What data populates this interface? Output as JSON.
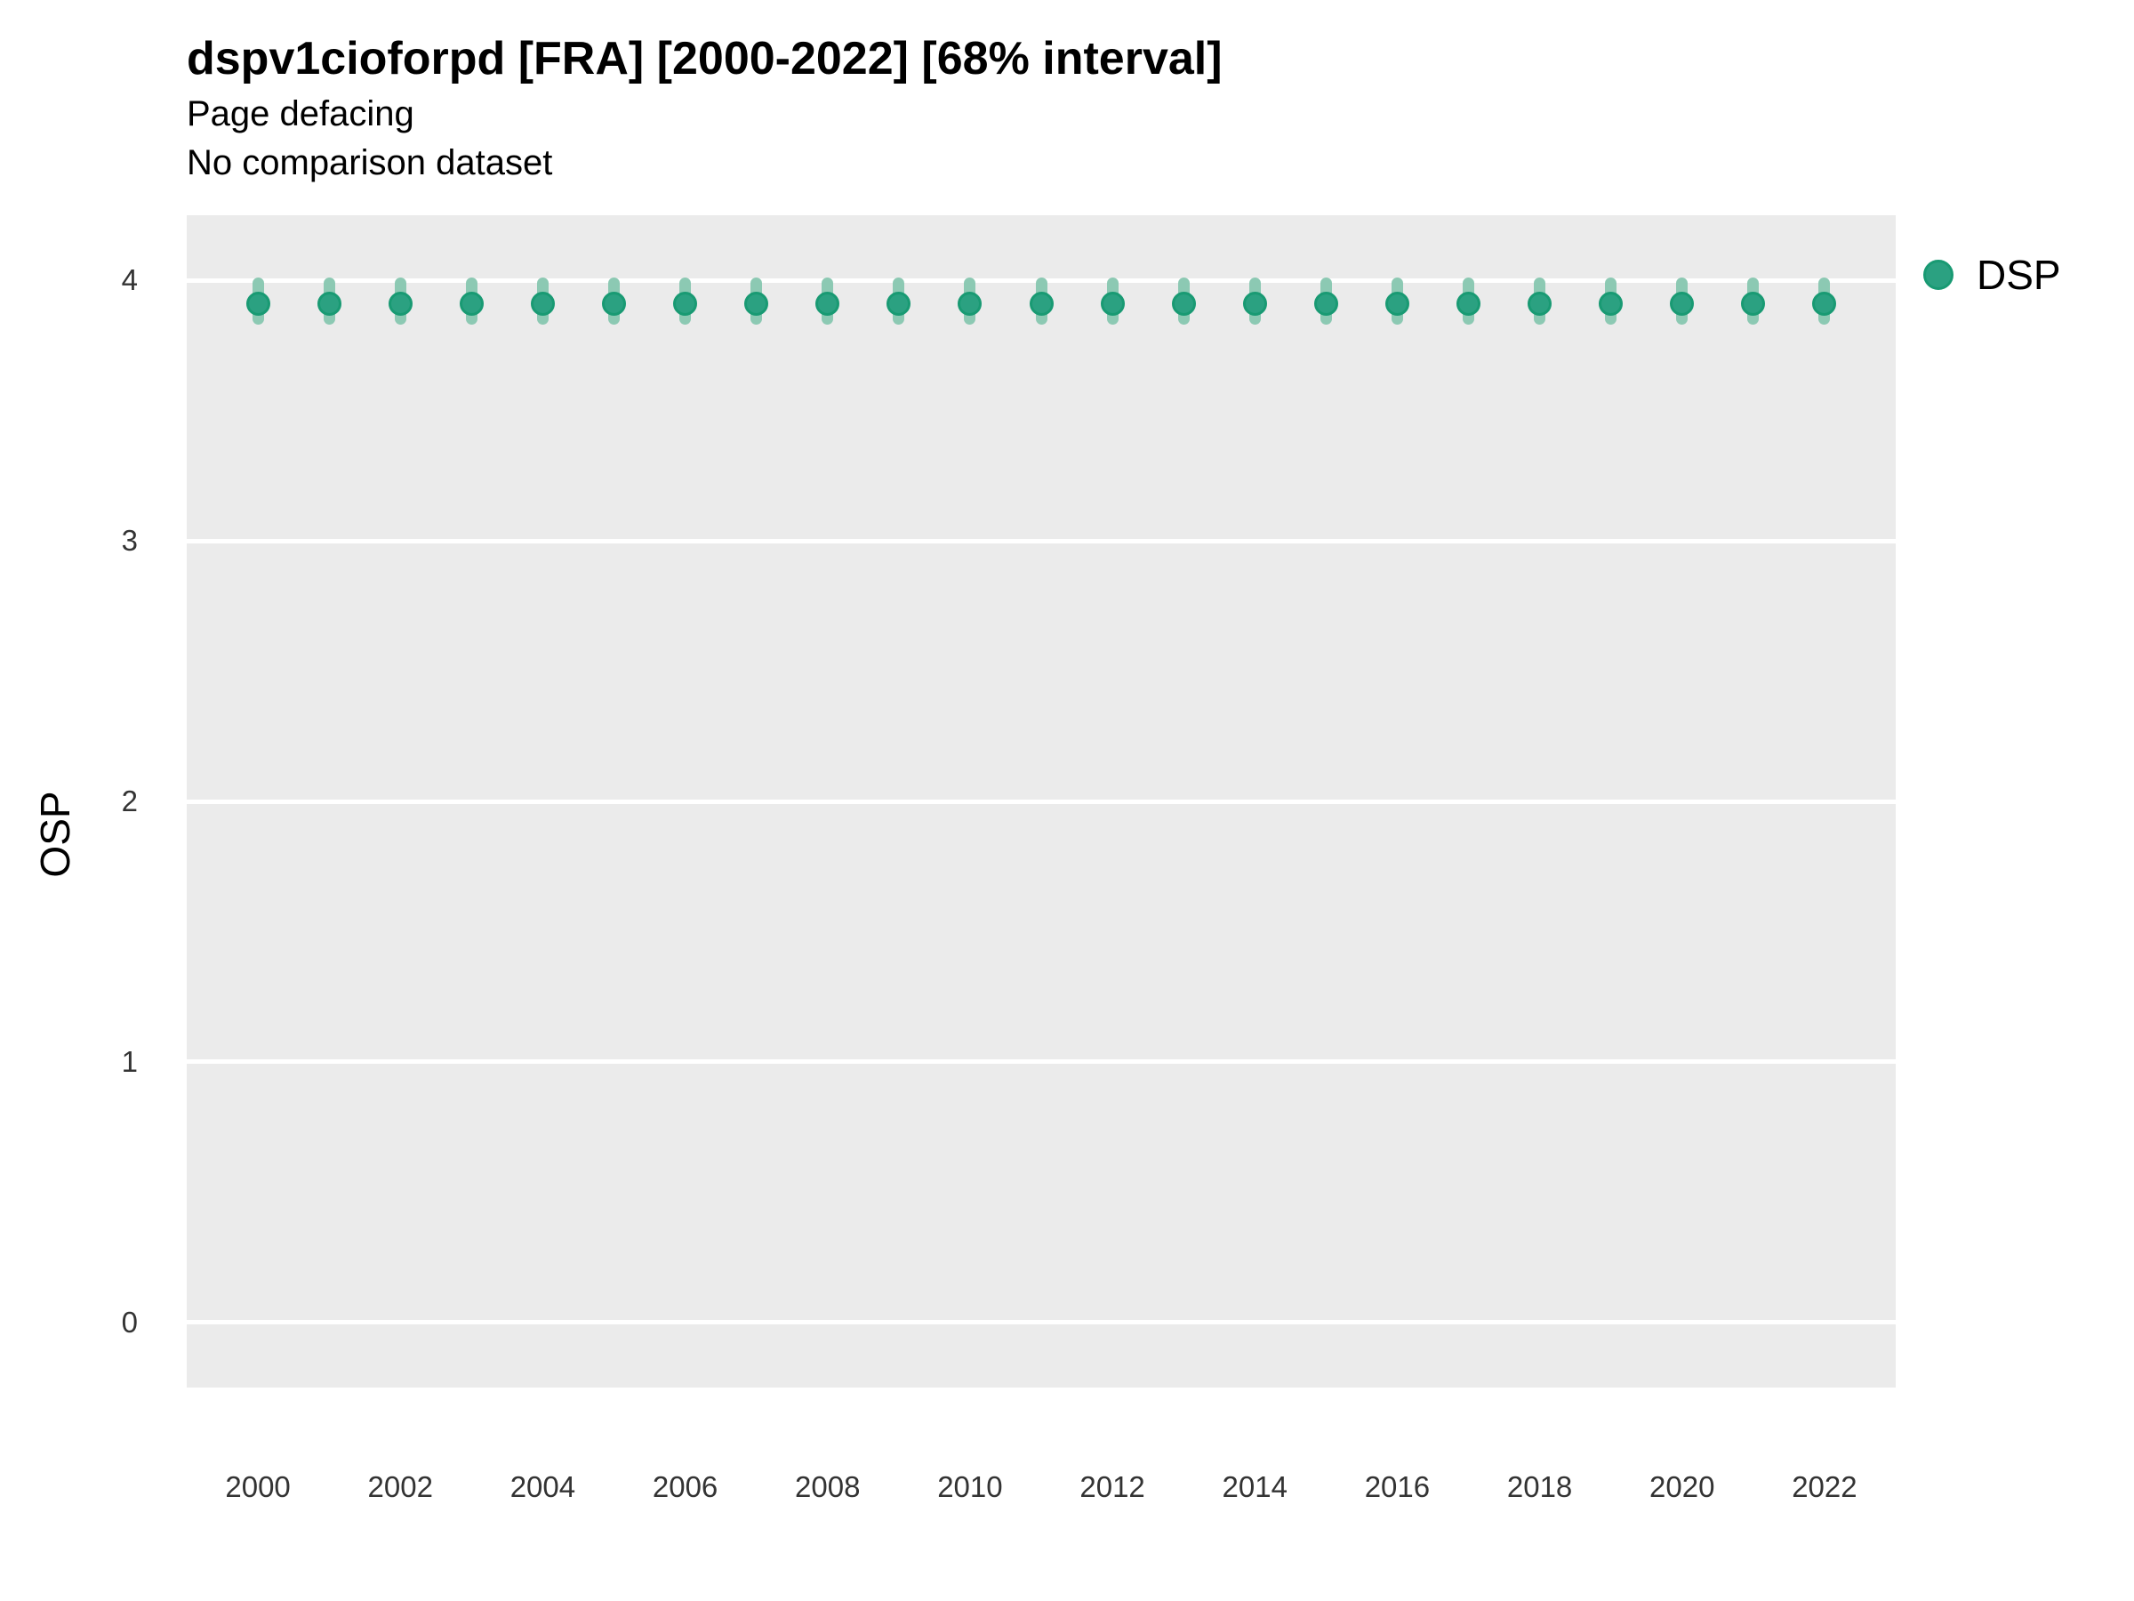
{
  "colors": {
    "point": "#2ba181",
    "point_border": "#199a73",
    "interval": "#8cc9b3",
    "panel_bg": "#ebebeb",
    "grid": "#ffffff",
    "text": "#000000",
    "tick_text": "#333333"
  },
  "legend": {
    "position": "right",
    "entries": [
      {
        "label": "DSP",
        "marker": "circle-icon"
      }
    ]
  },
  "chart_data": {
    "type": "pointrange",
    "title": "dspv1cioforpd [FRA] [2000-2022] [68% interval]",
    "subtitle": "Page defacing",
    "note": "No comparison dataset",
    "xlabel": "",
    "ylabel": "OSP",
    "interval_label": "68% interval",
    "grid": "horizontal-major-only",
    "legend_position": "right",
    "x": [
      2000,
      2001,
      2002,
      2003,
      2004,
      2005,
      2006,
      2007,
      2008,
      2009,
      2010,
      2011,
      2012,
      2013,
      2014,
      2015,
      2016,
      2017,
      2018,
      2019,
      2020,
      2021,
      2022
    ],
    "series": [
      {
        "name": "DSP",
        "values": [
          3.91,
          3.91,
          3.91,
          3.91,
          3.91,
          3.91,
          3.91,
          3.91,
          3.91,
          3.91,
          3.91,
          3.91,
          3.91,
          3.91,
          3.91,
          3.91,
          3.91,
          3.91,
          3.91,
          3.91,
          3.91,
          3.91,
          3.91
        ],
        "interval_low": [
          3.83,
          3.83,
          3.83,
          3.83,
          3.83,
          3.83,
          3.83,
          3.83,
          3.83,
          3.83,
          3.83,
          3.83,
          3.83,
          3.83,
          3.83,
          3.83,
          3.83,
          3.83,
          3.83,
          3.83,
          3.83,
          3.83,
          3.83
        ],
        "interval_high": [
          4.01,
          4.01,
          4.01,
          4.01,
          4.01,
          4.01,
          4.01,
          4.01,
          4.01,
          4.01,
          4.01,
          4.01,
          4.01,
          4.01,
          4.01,
          4.01,
          4.01,
          4.01,
          4.01,
          4.01,
          4.01,
          4.01,
          4.01
        ]
      }
    ],
    "ylim": [
      -0.25,
      4.25
    ],
    "xlim": [
      1999,
      2023
    ],
    "yticks": [
      0,
      1,
      2,
      3,
      4
    ],
    "xticks": [
      2000,
      2002,
      2004,
      2006,
      2008,
      2010,
      2012,
      2014,
      2016,
      2018,
      2020,
      2022
    ]
  }
}
